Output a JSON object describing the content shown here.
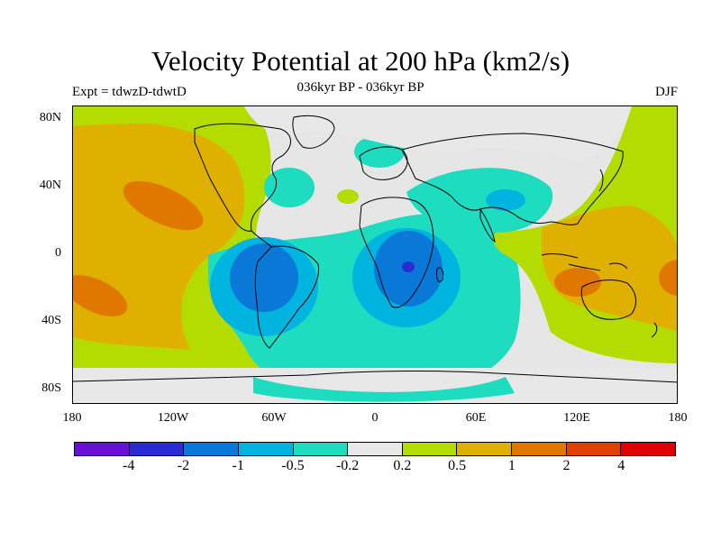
{
  "title": "Velocity Potential at 200 hPa (km2/s)",
  "subtitle": "036kyr BP - 036kyr BP",
  "left_label": "Expt = tdwzD-tdwtD",
  "right_label": "DJF",
  "y_labels": [
    "80N",
    "40N",
    "0",
    "40S",
    "80S"
  ],
  "x_labels": [
    "180",
    "120W",
    "60W",
    "0",
    "60E",
    "120E",
    "180"
  ],
  "colorbar": {
    "colors": [
      "#6a0fd6",
      "#2b2bd6",
      "#0a78d6",
      "#00b4e0",
      "#1edcc0",
      "#e8e8e8",
      "#b4dc00",
      "#e0b000",
      "#e07800",
      "#e04000",
      "#e00000"
    ],
    "labels": [
      "-4",
      "-2",
      "-1",
      "-0.5",
      "-0.2",
      "0.2",
      "0.5",
      "1",
      "2",
      "4"
    ]
  },
  "chart_data": {
    "type": "heatmap",
    "title": "Velocity Potential at 200 hPa (km2/s)",
    "subtitle": "036kyr BP - 036kyr BP",
    "lon_range": [
      -180,
      180
    ],
    "lat_range": [
      -90,
      90
    ],
    "contour_levels": [
      -4,
      -2,
      -1,
      -0.5,
      -0.2,
      0.2,
      0.5,
      1,
      2,
      4
    ],
    "regions": [
      {
        "name": "South America minimum",
        "lon": -62,
        "lat": -15,
        "value_range": [
          -1,
          -0.5
        ]
      },
      {
        "name": "Southern Africa minimum",
        "lon": 20,
        "lat": -8,
        "value_range": [
          -2,
          -1
        ]
      },
      {
        "name": "Central Pacific maximum (NH)",
        "lon": -145,
        "lat": 27,
        "value_range": [
          1,
          2
        ]
      },
      {
        "name": "Central Pacific maximum (SH)",
        "lon": -165,
        "lat": -20,
        "value_range": [
          1,
          2
        ]
      },
      {
        "name": "Maritime continent maximum",
        "lon": 120,
        "lat": -15,
        "value_range": [
          1,
          2
        ]
      }
    ]
  }
}
